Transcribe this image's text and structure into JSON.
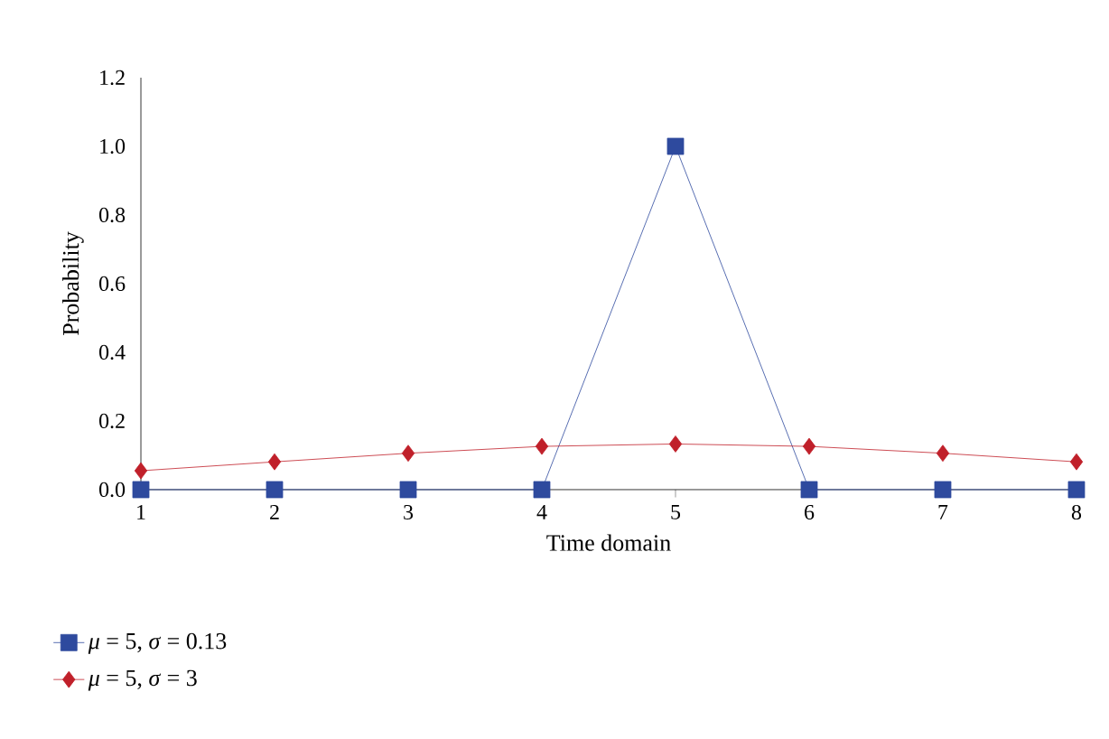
{
  "chart_data": {
    "type": "line",
    "xlabel": "Time domain",
    "ylabel": "Probability",
    "x": [
      1,
      2,
      3,
      4,
      5,
      6,
      7,
      8
    ],
    "series": [
      {
        "name": "*μ* = 5, *σ* = 0.13",
        "color": "#2e4a9e",
        "marker": "square",
        "values": [
          0,
          0,
          0,
          0,
          1,
          0,
          0,
          0
        ]
      },
      {
        "name": "*μ* = 5, *σ* = 3",
        "color": "#c0202a",
        "marker": "diamond",
        "values": [
          0.055,
          0.081,
          0.106,
          0.126,
          0.133,
          0.126,
          0.106,
          0.081
        ]
      }
    ],
    "xlim": [
      1,
      8
    ],
    "xticks": [
      1,
      2,
      3,
      4,
      5,
      6,
      7,
      8
    ],
    "ylim": [
      0,
      1.2
    ],
    "yticks": [
      {
        "value": 0,
        "label": "0.0"
      },
      {
        "value": 0.2,
        "label": "0.2"
      },
      {
        "value": 0.4,
        "label": "0.4"
      },
      {
        "value": 0.6,
        "label": "0.6"
      },
      {
        "value": 0.8,
        "label": "0.8"
      },
      {
        "value": 1.0,
        "label": "1.0"
      },
      {
        "value": 1.2,
        "label": "1.2"
      }
    ],
    "grid": false,
    "legend": "bottom left",
    "line_style": "solid"
  }
}
